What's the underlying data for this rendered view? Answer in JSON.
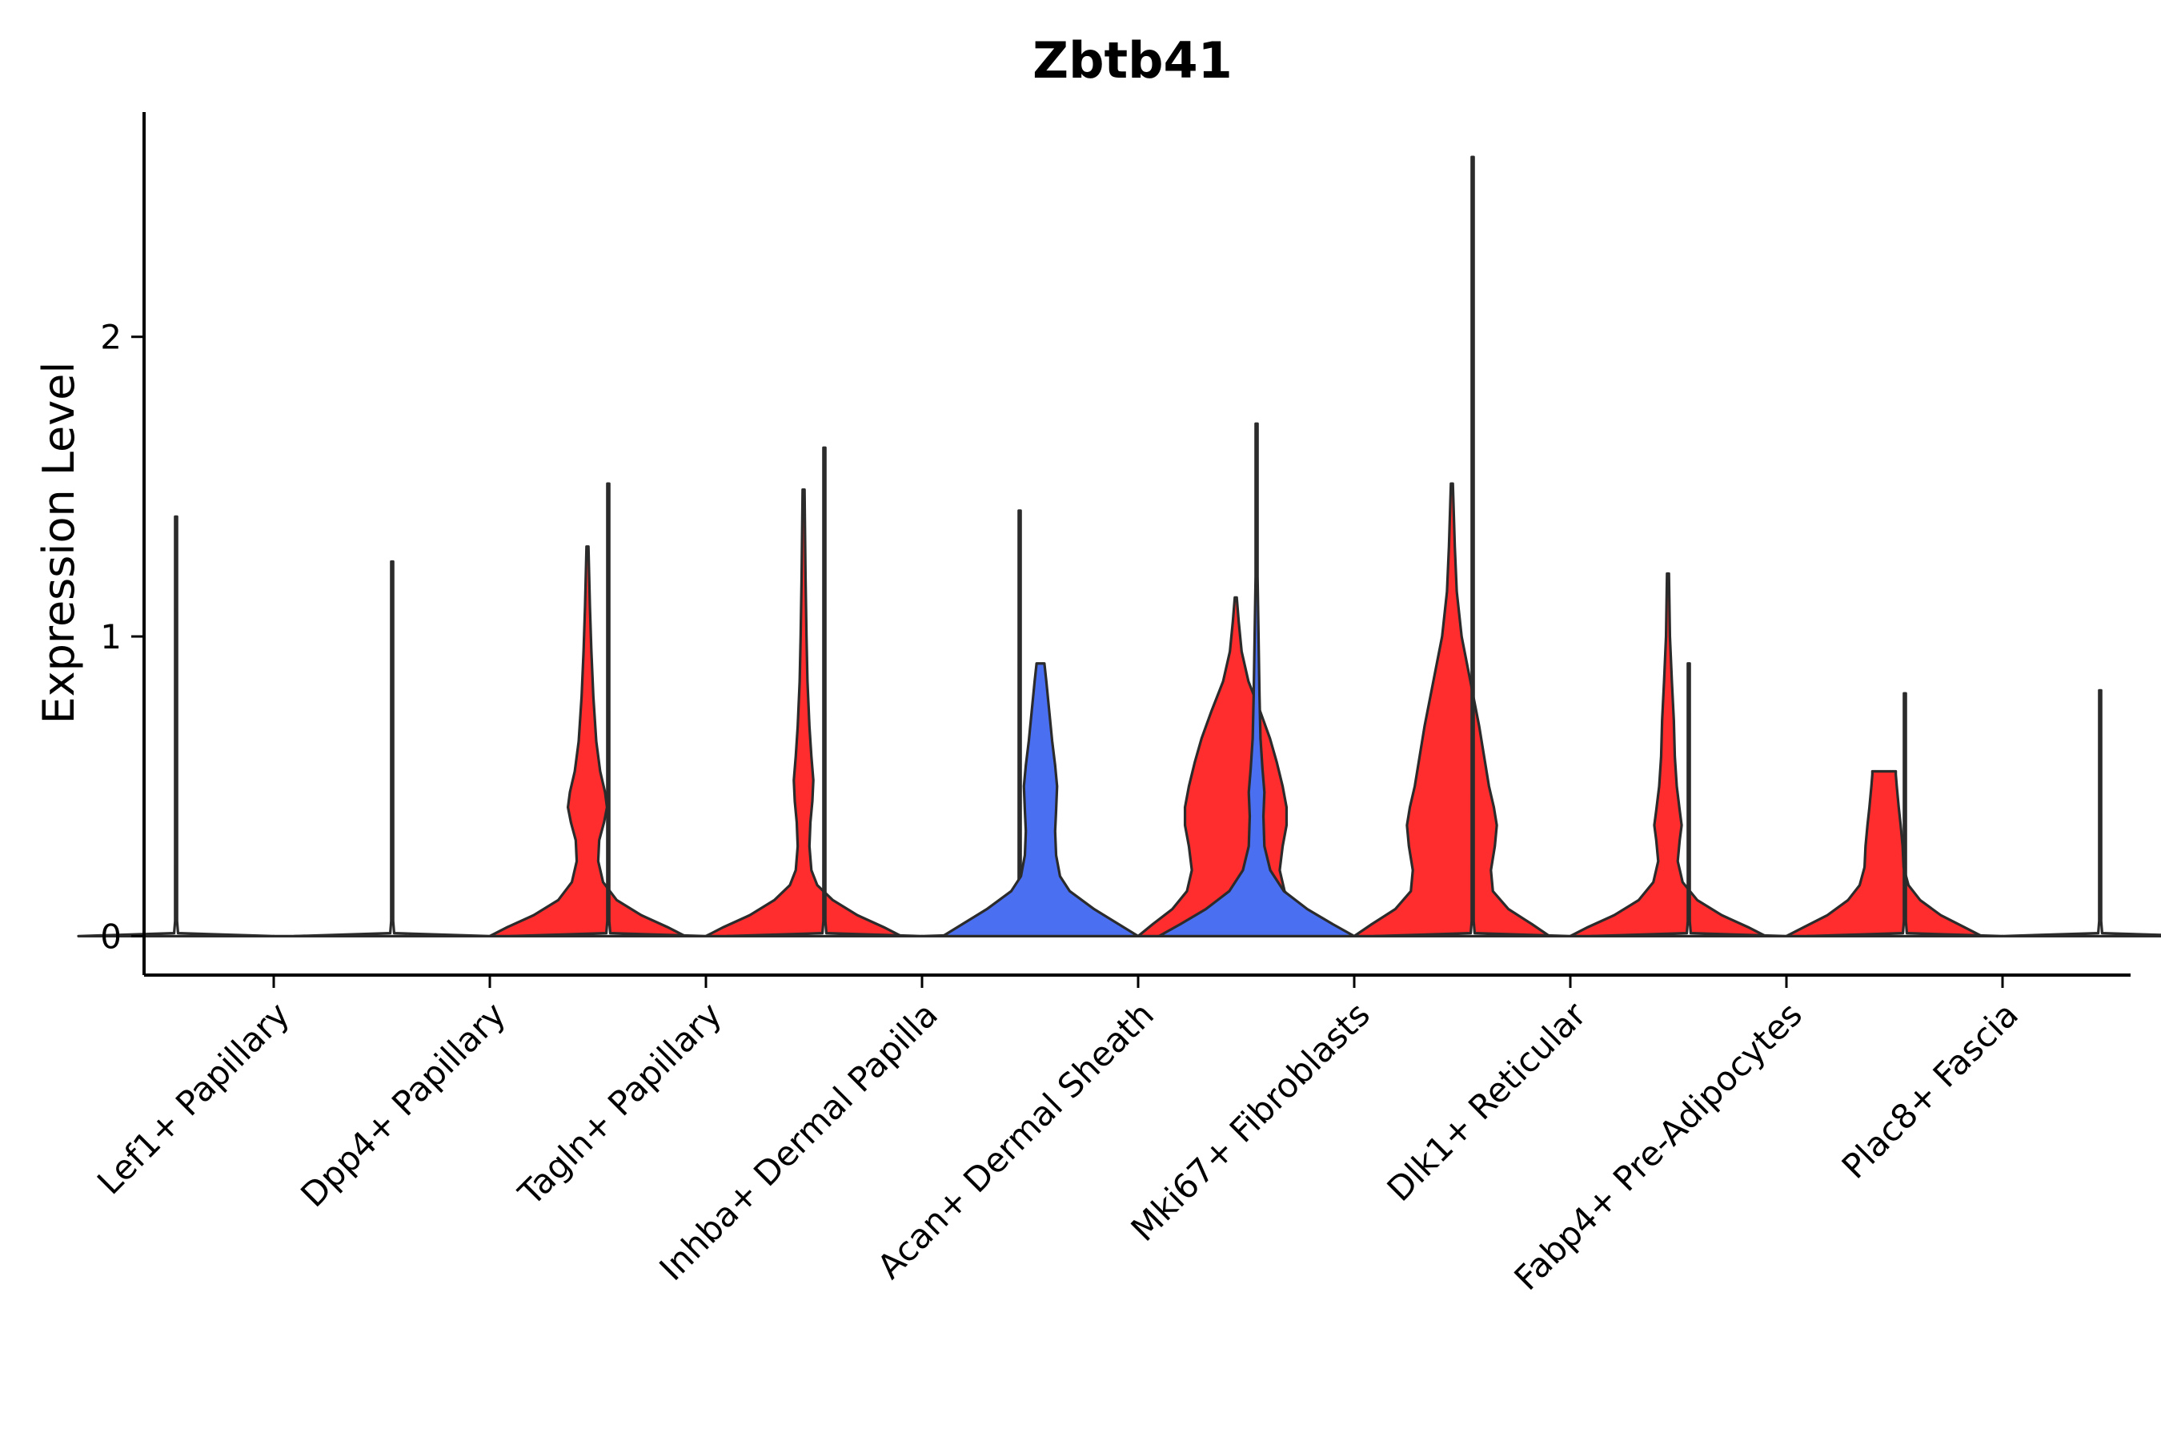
{
  "chart_data": {
    "type": "violin",
    "title": "Zbtb41",
    "xlabel": "",
    "ylabel": "Expression Level",
    "ylim": [
      -0.13,
      2.75
    ],
    "yticks": [
      0,
      1,
      2
    ],
    "grid": false,
    "legend": "none",
    "colors": {
      "group_a": "#4a6ff0",
      "group_b": "#ff2d2d",
      "empty": "#ffffff",
      "outline": "#2b2b2b"
    },
    "categories": [
      "Lef1+ Papillary",
      "Dpp4+ Papillary",
      "Tagln+ Papillary",
      "Inhba+ Dermal Papilla",
      "Acan+ Dermal Sheath",
      "Mki67+ Fibroblasts",
      "Dlk1+ Reticular",
      "Fabp4+ Pre-Adipocytes",
      "Plac8+ Fascia"
    ],
    "violins": [
      {
        "category": 0,
        "split": "left",
        "group": "empty",
        "max": 1.4,
        "density": [
          [
            0,
            1
          ],
          [
            0.01,
            0.02
          ],
          [
            0.05,
            0.01
          ],
          [
            1.4,
            0.006
          ]
        ]
      },
      {
        "category": 0,
        "split": "right",
        "group": "empty",
        "max": 0,
        "density": [
          [
            0,
            1
          ]
        ]
      },
      {
        "category": 1,
        "split": "left",
        "group": "empty",
        "max": 1.25,
        "density": [
          [
            0,
            1
          ],
          [
            0.01,
            0.02
          ],
          [
            0.05,
            0.01
          ],
          [
            1.25,
            0.006
          ]
        ]
      },
      {
        "category": 1,
        "split": "right",
        "group": "group_b",
        "max": 1.3,
        "density": [
          [
            0,
            1
          ],
          [
            0.03,
            0.82
          ],
          [
            0.07,
            0.55
          ],
          [
            0.12,
            0.3
          ],
          [
            0.18,
            0.16
          ],
          [
            0.25,
            0.11
          ],
          [
            0.32,
            0.12
          ],
          [
            0.38,
            0.17
          ],
          [
            0.43,
            0.2
          ],
          [
            0.48,
            0.18
          ],
          [
            0.55,
            0.13
          ],
          [
            0.65,
            0.09
          ],
          [
            0.8,
            0.06
          ],
          [
            0.95,
            0.04
          ],
          [
            1.1,
            0.025
          ],
          [
            1.3,
            0.01
          ]
        ]
      },
      {
        "category": 2,
        "split": "left",
        "group": "empty",
        "max": 1.51,
        "density": [
          [
            0,
            1
          ],
          [
            0.01,
            0.02
          ],
          [
            0.05,
            0.01
          ],
          [
            1.51,
            0.006
          ]
        ]
      },
      {
        "category": 2,
        "split": "right",
        "group": "group_b",
        "max": 1.49,
        "density": [
          [
            0,
            1
          ],
          [
            0.03,
            0.82
          ],
          [
            0.07,
            0.55
          ],
          [
            0.12,
            0.3
          ],
          [
            0.17,
            0.14
          ],
          [
            0.22,
            0.08
          ],
          [
            0.3,
            0.06
          ],
          [
            0.38,
            0.07
          ],
          [
            0.45,
            0.09
          ],
          [
            0.52,
            0.1
          ],
          [
            0.6,
            0.08
          ],
          [
            0.7,
            0.06
          ],
          [
            0.85,
            0.04
          ],
          [
            1.0,
            0.03
          ],
          [
            1.2,
            0.02
          ],
          [
            1.49,
            0.008
          ]
        ]
      },
      {
        "category": 3,
        "split": "left",
        "group": "empty",
        "max": 1.63,
        "density": [
          [
            0,
            1
          ],
          [
            0.01,
            0.02
          ],
          [
            0.05,
            0.01
          ],
          [
            1.63,
            0.006
          ]
        ]
      },
      {
        "category": 3,
        "split": "right",
        "group": "empty",
        "max": 1.42,
        "density": [
          [
            0,
            1
          ],
          [
            0.01,
            0.02
          ],
          [
            0.05,
            0.01
          ],
          [
            1.42,
            0.006
          ]
        ]
      },
      {
        "category": 4,
        "split": "left",
        "group": "group_a",
        "max": 0.91,
        "density": [
          [
            0,
            1
          ],
          [
            0.04,
            0.8
          ],
          [
            0.09,
            0.55
          ],
          [
            0.15,
            0.3
          ],
          [
            0.2,
            0.2
          ],
          [
            0.27,
            0.16
          ],
          [
            0.35,
            0.15
          ],
          [
            0.42,
            0.16
          ],
          [
            0.5,
            0.17
          ],
          [
            0.57,
            0.15
          ],
          [
            0.65,
            0.12
          ],
          [
            0.75,
            0.09
          ],
          [
            0.85,
            0.06
          ],
          [
            0.91,
            0.04
          ]
        ]
      },
      {
        "category": 4,
        "split": "right",
        "group": "group_b",
        "max": 1.13,
        "density": [
          [
            0,
            1
          ],
          [
            0.04,
            0.85
          ],
          [
            0.09,
            0.65
          ],
          [
            0.15,
            0.5
          ],
          [
            0.22,
            0.45
          ],
          [
            0.3,
            0.48
          ],
          [
            0.37,
            0.52
          ],
          [
            0.43,
            0.52
          ],
          [
            0.5,
            0.48
          ],
          [
            0.58,
            0.42
          ],
          [
            0.66,
            0.35
          ],
          [
            0.75,
            0.25
          ],
          [
            0.85,
            0.13
          ],
          [
            0.95,
            0.06
          ],
          [
            1.05,
            0.03
          ],
          [
            1.13,
            0.01
          ]
        ]
      },
      {
        "category": 5,
        "split": "left",
        "group": "group_a",
        "max": 1.71,
        "density": [
          [
            0,
            1
          ],
          [
            0.04,
            0.78
          ],
          [
            0.09,
            0.52
          ],
          [
            0.15,
            0.28
          ],
          [
            0.22,
            0.14
          ],
          [
            0.3,
            0.08
          ],
          [
            0.4,
            0.07
          ],
          [
            0.48,
            0.08
          ],
          [
            0.56,
            0.06
          ],
          [
            0.66,
            0.04
          ],
          [
            0.8,
            0.03
          ],
          [
            1.0,
            0.02
          ],
          [
            1.2,
            0.01
          ],
          [
            1.71,
            0.005
          ]
        ]
      },
      {
        "category": 5,
        "split": "right",
        "group": "group_b",
        "max": 1.51,
        "density": [
          [
            0,
            1
          ],
          [
            0.04,
            0.82
          ],
          [
            0.09,
            0.58
          ],
          [
            0.15,
            0.42
          ],
          [
            0.22,
            0.4
          ],
          [
            0.3,
            0.44
          ],
          [
            0.37,
            0.46
          ],
          [
            0.43,
            0.43
          ],
          [
            0.5,
            0.38
          ],
          [
            0.6,
            0.33
          ],
          [
            0.7,
            0.28
          ],
          [
            0.8,
            0.22
          ],
          [
            0.9,
            0.16
          ],
          [
            1.0,
            0.1
          ],
          [
            1.15,
            0.05
          ],
          [
            1.3,
            0.03
          ],
          [
            1.51,
            0.01
          ]
        ]
      },
      {
        "category": 6,
        "split": "left",
        "group": "empty",
        "max": 2.6,
        "density": [
          [
            0,
            1
          ],
          [
            0.01,
            0.02
          ],
          [
            0.05,
            0.01
          ],
          [
            2.6,
            0.006
          ]
        ]
      },
      {
        "category": 6,
        "split": "right",
        "group": "group_b",
        "max": 1.21,
        "density": [
          [
            0,
            1
          ],
          [
            0.03,
            0.82
          ],
          [
            0.07,
            0.55
          ],
          [
            0.12,
            0.3
          ],
          [
            0.18,
            0.15
          ],
          [
            0.25,
            0.1
          ],
          [
            0.32,
            0.12
          ],
          [
            0.37,
            0.14
          ],
          [
            0.42,
            0.12
          ],
          [
            0.5,
            0.09
          ],
          [
            0.6,
            0.07
          ],
          [
            0.72,
            0.06
          ],
          [
            0.85,
            0.04
          ],
          [
            1.0,
            0.02
          ],
          [
            1.21,
            0.008
          ]
        ]
      },
      {
        "category": 7,
        "split": "left",
        "group": "empty",
        "max": 0.91,
        "density": [
          [
            0,
            1
          ],
          [
            0.01,
            0.02
          ],
          [
            0.05,
            0.01
          ],
          [
            0.91,
            0.006
          ]
        ]
      },
      {
        "category": 7,
        "split": "right",
        "group": "group_b",
        "max": 0.55,
        "density": [
          [
            0,
            1
          ],
          [
            0.03,
            0.82
          ],
          [
            0.07,
            0.58
          ],
          [
            0.12,
            0.37
          ],
          [
            0.17,
            0.25
          ],
          [
            0.23,
            0.2
          ],
          [
            0.3,
            0.19
          ],
          [
            0.37,
            0.17
          ],
          [
            0.43,
            0.15
          ],
          [
            0.5,
            0.13
          ],
          [
            0.54,
            0.12
          ],
          [
            0.55,
            0.12
          ]
        ]
      },
      {
        "category": 8,
        "split": "left",
        "group": "empty",
        "max": 0.81,
        "density": [
          [
            0,
            1
          ],
          [
            0.01,
            0.02
          ],
          [
            0.05,
            0.01
          ],
          [
            0.81,
            0.006
          ]
        ]
      },
      {
        "category": 8,
        "split": "right",
        "group": "empty",
        "max": 0.82,
        "density": [
          [
            0,
            1
          ],
          [
            0.01,
            0.02
          ],
          [
            0.05,
            0.01
          ],
          [
            0.82,
            0.006
          ]
        ]
      }
    ]
  }
}
